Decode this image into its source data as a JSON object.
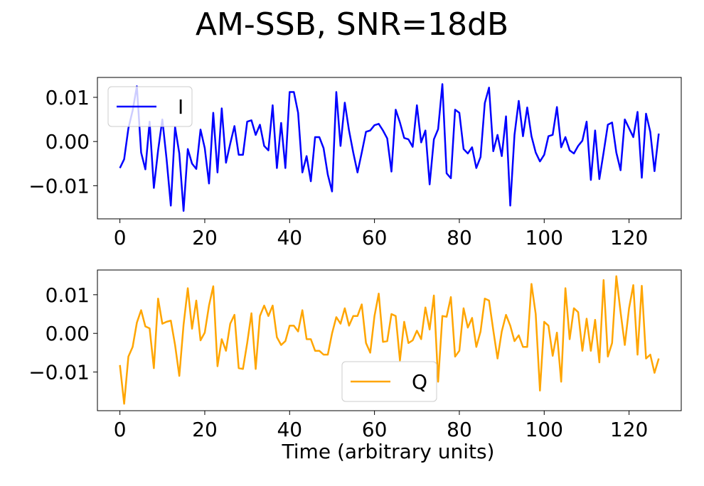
{
  "chart_data": {
    "type": "line",
    "title": "AM-SSB, SNR=18dB",
    "xlabel": "Time (arbitrary units)",
    "subplots": [
      {
        "legend_loc": "upper-left",
        "xlim": [
          -5.3,
          132.3
        ],
        "ylim": [
          -0.0175,
          0.0145
        ],
        "yticks": [
          -0.01,
          0.0,
          0.01
        ],
        "ytick_labels": [
          "−0.01",
          "0.00",
          "0.01"
        ],
        "xticks": [
          0,
          20,
          40,
          60,
          80,
          100,
          120
        ],
        "xtick_labels": [
          "0",
          "20",
          "40",
          "60",
          "80",
          "100",
          "120"
        ],
        "show_xlabel": false,
        "series": [
          {
            "name": "I",
            "color": "#0000ff",
            "values": [
              -0.006,
              -0.004,
              0.003,
              0.007,
              0.0125,
              -0.0025,
              -0.0063,
              0.0045,
              -0.0105,
              -0.002,
              0.005,
              -0.004,
              -0.0145,
              0.0033,
              -0.0027,
              -0.0157,
              -0.0017,
              -0.005,
              -0.0062,
              0.0027,
              -0.0015,
              -0.0095,
              0.0065,
              -0.007,
              0.0075,
              -0.0048,
              -0.0005,
              0.0035,
              -0.003,
              -0.003,
              0.0045,
              0.0048,
              0.0015,
              0.0038,
              -0.001,
              -0.002,
              0.0082,
              -0.006,
              0.0042,
              -0.006,
              0.0112,
              0.0112,
              0.0065,
              -0.007,
              -0.0033,
              -0.009,
              0.001,
              0.001,
              -0.0015,
              -0.0075,
              -0.0113,
              0.0112,
              -0.001,
              0.0088,
              0.0025,
              -0.0025,
              -0.007,
              -0.0025,
              0.0022,
              0.0025,
              0.0037,
              0.004,
              0.0025,
              0.0007,
              -0.0068,
              0.0072,
              0.0043,
              0.0008,
              0.0005,
              -0.0012,
              0.0082,
              -0.0002,
              0.0025,
              -0.0097,
              0.0005,
              0.0028,
              0.013,
              -0.0072,
              -0.0083,
              0.0072,
              0.0065,
              -0.0017,
              -0.0027,
              -0.0013,
              -0.006,
              -0.0035,
              0.0087,
              0.0122,
              -0.0022,
              0.0015,
              -0.0033,
              0.0057,
              -0.0145,
              0.0015,
              0.0092,
              0.0012,
              0.0077,
              0.0012,
              -0.0025,
              -0.0045,
              -0.003,
              0.0012,
              0.0015,
              0.0078,
              -0.0013,
              0.001,
              -0.002,
              -0.0027,
              -0.001,
              0.0002,
              0.0045,
              -0.0087,
              0.0025,
              -0.0085,
              -0.0025,
              0.0038,
              0.0043,
              -0.0025,
              -0.0065,
              0.005,
              0.003,
              0.001,
              0.0067,
              -0.0082,
              0.0063,
              0.0022,
              -0.0067,
              0.0018
            ]
          }
        ]
      },
      {
        "legend_loc": "lower-center",
        "xlim": [
          -5.3,
          132.3
        ],
        "ylim": [
          -0.02,
          0.0164
        ],
        "yticks": [
          -0.01,
          0.0,
          0.01
        ],
        "ytick_labels": [
          "−0.01",
          "0.00",
          "0.01"
        ],
        "xticks": [
          0,
          20,
          40,
          60,
          80,
          100,
          120
        ],
        "xtick_labels": [
          "0",
          "20",
          "40",
          "60",
          "80",
          "100",
          "120"
        ],
        "show_xlabel": true,
        "series": [
          {
            "name": "Q",
            "color": "#ffa500",
            "values": [
              -0.0082,
              -0.0182,
              -0.006,
              -0.0035,
              0.0028,
              0.006,
              0.0018,
              0.0013,
              -0.009,
              0.009,
              0.0025,
              0.003,
              0.0033,
              -0.003,
              -0.011,
              0.0022,
              0.0117,
              0.0012,
              0.0085,
              -0.0018,
              0.0002,
              0.0072,
              0.0122,
              -0.0085,
              -0.0015,
              -0.0045,
              0.0025,
              0.0048,
              -0.009,
              -0.0092,
              -0.0025,
              0.0052,
              -0.0092,
              0.0045,
              0.0072,
              0.0045,
              0.0072,
              -0.001,
              -0.003,
              -0.002,
              0.002,
              0.002,
              0.0005,
              0.006,
              -0.0015,
              -0.0015,
              -0.0045,
              -0.0045,
              -0.0055,
              -0.0055,
              0.0,
              0.0042,
              0.0025,
              0.0065,
              0.002,
              0.0045,
              0.0045,
              0.0075,
              -0.0025,
              -0.005,
              0.0045,
              0.0103,
              -0.0022,
              -0.002,
              0.005,
              0.0045,
              -0.007,
              0.003,
              -0.0025,
              -0.0018,
              0.0007,
              -0.0015,
              0.0067,
              0.001,
              0.0098,
              -0.0125,
              0.0045,
              0.0043,
              0.0094,
              -0.006,
              -0.0045,
              0.0065,
              0.0015,
              0.004,
              -0.0035,
              0.0005,
              0.009,
              0.0085,
              0.0008,
              -0.0065,
              0.0005,
              0.0048,
              0.002,
              -0.002,
              -0.0005,
              -0.0035,
              -0.0035,
              0.0128,
              0.005,
              -0.0148,
              0.003,
              0.002,
              -0.0058,
              0.0002,
              -0.0125,
              0.0117,
              -0.0015,
              0.0065,
              0.0055,
              -0.0045,
              0.0038,
              -0.0045,
              0.0035,
              -0.0075,
              0.0138,
              -0.006,
              -0.0025,
              0.0148,
              0.0055,
              -0.003,
              0.0065,
              0.0125,
              -0.0055,
              0.0123,
              -0.0065,
              -0.0055,
              -0.0102,
              -0.0065
            ]
          }
        ]
      }
    ]
  }
}
